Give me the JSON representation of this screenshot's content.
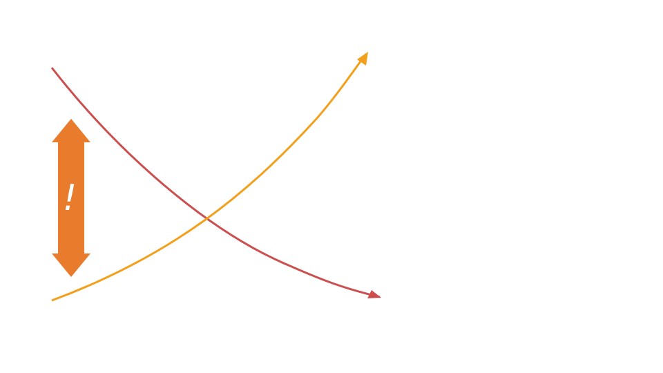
{
  "callout": {
    "label": "!"
  }
}
